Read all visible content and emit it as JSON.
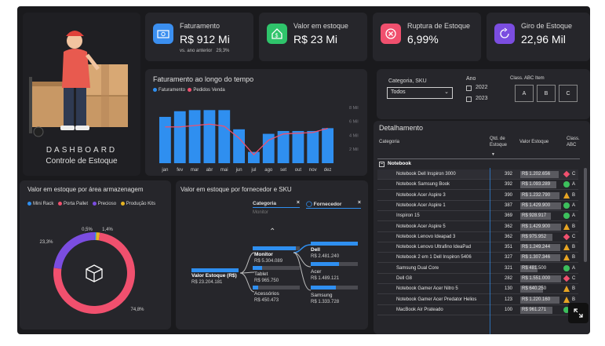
{
  "kpis": [
    {
      "title": "Faturamento",
      "value": "R$ 912 Mi",
      "sub": "vs. ano anterior",
      "sub_value": "29,3%",
      "color": "#3b8ff0",
      "icon": "money-icon"
    },
    {
      "title": "Valor em estoque",
      "value": "R$ 23 Mi",
      "color": "#2fc46b",
      "icon": "house-dollar-icon"
    },
    {
      "title": "Ruptura de Estoque",
      "value": "6,99%",
      "color": "#f0506e",
      "icon": "x-circle-icon"
    },
    {
      "title": "Giro de Estoque",
      "value": "22,96 Mil",
      "color": "#7b4de0",
      "icon": "refresh-icon"
    }
  ],
  "logo": {
    "line1": "DASHBOARD",
    "line2": "Controle de Estoque"
  },
  "revenue_chart": {
    "title": "Faturamento ao longo do tempo",
    "legend": [
      "Faturamento",
      "Pedidos Venda"
    ],
    "colors": {
      "bar": "#2f8ff0",
      "line": "#f0506e"
    },
    "y_ticks": [
      "8 Mil",
      "6 Mil",
      "4 Mil",
      "2 Mil"
    ]
  },
  "chart_data": [
    {
      "type": "bar",
      "title": "Faturamento ao longo do tempo",
      "categories": [
        "jan",
        "fev",
        "mar",
        "abr",
        "mai",
        "jun",
        "jul",
        "ago",
        "set",
        "out",
        "nov",
        "dez"
      ],
      "series": [
        {
          "name": "Faturamento",
          "values": [
            82,
            92,
            94,
            94,
            94,
            60,
            20,
            52,
            57,
            57,
            57,
            62
          ]
        },
        {
          "name": "Pedidos Venda",
          "values": [
            5.2,
            5.2,
            5.4,
            5.6,
            5.3,
            3.6,
            1.2,
            3.3,
            4.2,
            4.3,
            4.4,
            5.0
          ]
        }
      ],
      "y2_ticks": [
        "8 Mil",
        "6 Mil",
        "4 Mil",
        "2 Mil"
      ],
      "y2lim": [
        0,
        9
      ]
    },
    {
      "type": "pie",
      "title": "Valor em estoque por área armazenagem",
      "labels": [
        "Mini Rack",
        "Porta Pallet",
        "Precioso",
        "Produção Kits"
      ],
      "values": [
        0.5,
        74.8,
        23.3,
        1.4
      ],
      "value_labels": [
        "0,5%",
        "74,8%",
        "23,3%",
        "1,4%"
      ],
      "colors": [
        "#2f8ff0",
        "#f0506e",
        "#7b4de0",
        "#e6b422"
      ]
    }
  ],
  "area_chart": {
    "title": "Valor em estoque por área armazenagem",
    "legend": [
      "Mini Rack",
      "Porta Pallet",
      "Precioso",
      "Produção Kits"
    ],
    "colors": [
      "#2f8ff0",
      "#f0506e",
      "#7b4de0",
      "#e6b422"
    ]
  },
  "tree": {
    "title": "Valor em estoque por fornecedor e SKU",
    "filter1": "Categoria",
    "filter1_sub": "Monitor",
    "filter2": "Fornecedor",
    "root_label": "Valor Estoque (R$)",
    "root_value": "R$ 23.204.181",
    "categories": [
      {
        "label": "Monitor",
        "value": "R$ 5.304.089"
      },
      {
        "label": "Tablet",
        "value": "R$ 965.750"
      },
      {
        "label": "Acessórios",
        "value": "R$ 450.473"
      }
    ],
    "suppliers": [
      {
        "label": "Dell",
        "value": "R$ 2.481.240"
      },
      {
        "label": "Acer",
        "value": "R$ 1.489.121"
      },
      {
        "label": "Samsung",
        "value": "R$ 1.333.728"
      }
    ]
  },
  "filters": {
    "categoria_label": "Categoria, SKU",
    "categoria_value": "Todos",
    "ano_label": "Ano",
    "anos": [
      "2022",
      "2023"
    ],
    "abc_label": "Class. ABC Item",
    "abc": [
      "A",
      "B",
      "C"
    ]
  },
  "detail": {
    "title": "Detalhamento",
    "headers": {
      "categoria": "Categoria",
      "qty": "Qtd. de Estoque",
      "valor": "Valor Estoque",
      "classe": "Class. ABC"
    },
    "group": "Notebook",
    "rows": [
      {
        "name": "Notebook Dell Inspiron 3000",
        "qty": "392",
        "valor": "R$ 1.202.656",
        "status": "red",
        "cls": "C",
        "fill": 0.95
      },
      {
        "name": "Notebook Samsung Book",
        "qty": "392",
        "valor": "R$ 1.093.289",
        "status": "green",
        "cls": "A",
        "fill": 0.88
      },
      {
        "name": "Notebook Acer Aspire 3",
        "qty": "390",
        "valor": "R$ 1.232.790",
        "status": "orange",
        "cls": "B",
        "fill": 0.97
      },
      {
        "name": "Notebook Acer Aspire 1",
        "qty": "387",
        "valor": "R$ 1.429.900",
        "status": "green",
        "cls": "A",
        "fill": 1.0
      },
      {
        "name": "Inspiron 15",
        "qty": "369",
        "valor": "R$ 928.917",
        "status": "green",
        "cls": "A",
        "fill": 0.75
      },
      {
        "name": "Notebook Acer Aspire 5",
        "qty": "362",
        "valor": "R$ 1.429.900",
        "status": "orange",
        "cls": "B",
        "fill": 1.0
      },
      {
        "name": "Notebook Lenovo Ideapad 3",
        "qty": "362",
        "valor": "R$ 975.952",
        "status": "red",
        "cls": "C",
        "fill": 0.78
      },
      {
        "name": "Notebook Lenovo Ultrafino IdeaPad",
        "qty": "351",
        "valor": "R$ 1.249.244",
        "status": "orange",
        "cls": "B",
        "fill": 0.98
      },
      {
        "name": "Notebook 2 em 1 Dell Inspiron 5406",
        "qty": "327",
        "valor": "R$ 1.307.346",
        "status": "orange",
        "cls": "B",
        "fill": 0.99
      },
      {
        "name": "Samsung Dual Core",
        "qty": "321",
        "valor": "R$ 481.500",
        "status": "green",
        "cls": "A",
        "fill": 0.42
      },
      {
        "name": "Dell G8",
        "qty": "282",
        "valor": "R$ 1.551.000",
        "status": "red",
        "cls": "C",
        "fill": 1.0
      },
      {
        "name": "Notebook Gamer Acer Nitro 5",
        "qty": "130",
        "valor": "R$ 640.250",
        "status": "orange",
        "cls": "B",
        "fill": 0.55
      },
      {
        "name": "Notebook Gamer Acer Predator Helios",
        "qty": "123",
        "valor": "R$ 1.220.160",
        "status": "orange",
        "cls": "B",
        "fill": 0.96
      },
      {
        "name": "MacBook Air Prateado",
        "qty": "100",
        "valor": "R$ 961.271",
        "status": "green",
        "cls": "A",
        "fill": 0.78
      }
    ]
  },
  "expand_icon": "expand-icon"
}
